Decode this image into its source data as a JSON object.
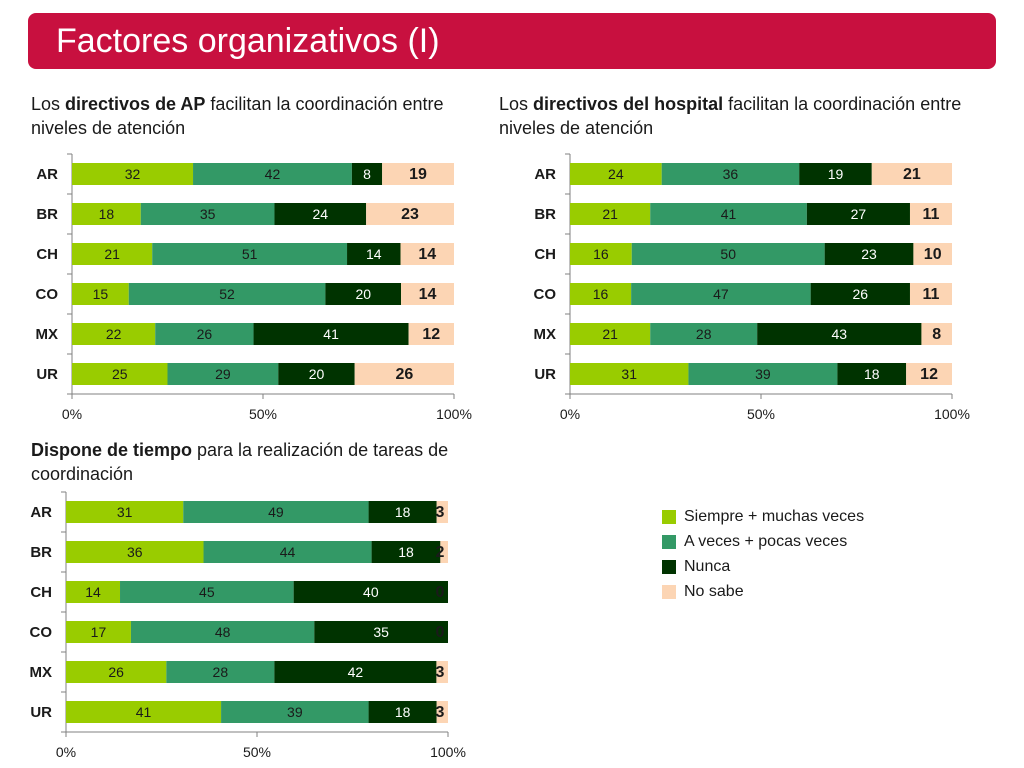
{
  "header": {
    "title": "Factores organizativos (I)"
  },
  "colors": {
    "siempre": "#99cc00",
    "a_veces": "#339966",
    "nunca": "#003300",
    "no_sabe": "#fcd5b4",
    "title_bar": "#c8103f"
  },
  "legend": [
    {
      "label": "Siempre + muchas veces",
      "color": "#99cc00"
    },
    {
      "label": "A veces + pocas veces",
      "color": "#339966"
    },
    {
      "label": "Nunca",
      "color": "#003300"
    },
    {
      "label": "No sabe",
      "color": "#fcd5b4"
    }
  ],
  "chart_titles": [
    {
      "prefix": "Los ",
      "bold": "directivos de AP",
      "suffix": " facilitan la coordinación entre niveles de atención"
    },
    {
      "prefix": "Los ",
      "bold": "directivos del hospital",
      "suffix": " facilitan la coordinación entre niveles de atención"
    },
    {
      "prefix": "",
      "bold": "Dispone de tiempo",
      "suffix": " para la realización de tareas de coordinación"
    }
  ],
  "chart_data": [
    {
      "type": "bar",
      "stacked": true,
      "orientation": "horizontal",
      "categories": [
        "AR",
        "BR",
        "CH",
        "CO",
        "MX",
        "UR"
      ],
      "series": [
        {
          "name": "Siempre + muchas veces",
          "values": [
            32,
            18,
            21,
            15,
            22,
            25
          ]
        },
        {
          "name": "A veces + pocas veces",
          "values": [
            42,
            35,
            51,
            52,
            26,
            29
          ]
        },
        {
          "name": "Nunca",
          "values": [
            8,
            24,
            14,
            20,
            41,
            20
          ]
        },
        {
          "name": "No sabe",
          "values": [
            19,
            23,
            14,
            14,
            12,
            26
          ]
        }
      ],
      "xticks": [
        "0%",
        "50%",
        "100%"
      ],
      "xlim": [
        0,
        100
      ]
    },
    {
      "type": "bar",
      "stacked": true,
      "orientation": "horizontal",
      "categories": [
        "AR",
        "BR",
        "CH",
        "CO",
        "MX",
        "UR"
      ],
      "series": [
        {
          "name": "Siempre + muchas veces",
          "values": [
            24,
            21,
            16,
            16,
            21,
            31
          ]
        },
        {
          "name": "A veces + pocas veces",
          "values": [
            36,
            41,
            50,
            47,
            28,
            39
          ]
        },
        {
          "name": "Nunca",
          "values": [
            19,
            27,
            23,
            26,
            43,
            18
          ]
        },
        {
          "name": "No sabe",
          "values": [
            21,
            11,
            10,
            11,
            8,
            12
          ]
        }
      ],
      "xticks": [
        "0%",
        "50%",
        "100%"
      ],
      "xlim": [
        0,
        100
      ]
    },
    {
      "type": "bar",
      "stacked": true,
      "orientation": "horizontal",
      "categories": [
        "AR",
        "BR",
        "CH",
        "CO",
        "MX",
        "UR"
      ],
      "series": [
        {
          "name": "Siempre + muchas veces",
          "values": [
            31,
            36,
            14,
            17,
            26,
            41
          ]
        },
        {
          "name": "A veces + pocas veces",
          "values": [
            49,
            44,
            45,
            48,
            28,
            39
          ]
        },
        {
          "name": "Nunca",
          "values": [
            18,
            18,
            40,
            35,
            42,
            18
          ]
        },
        {
          "name": "No sabe",
          "values": [
            3,
            2,
            0,
            0,
            3,
            3
          ]
        }
      ],
      "xticks": [
        "0%",
        "50%",
        "100%"
      ],
      "xlim": [
        0,
        100
      ]
    }
  ]
}
